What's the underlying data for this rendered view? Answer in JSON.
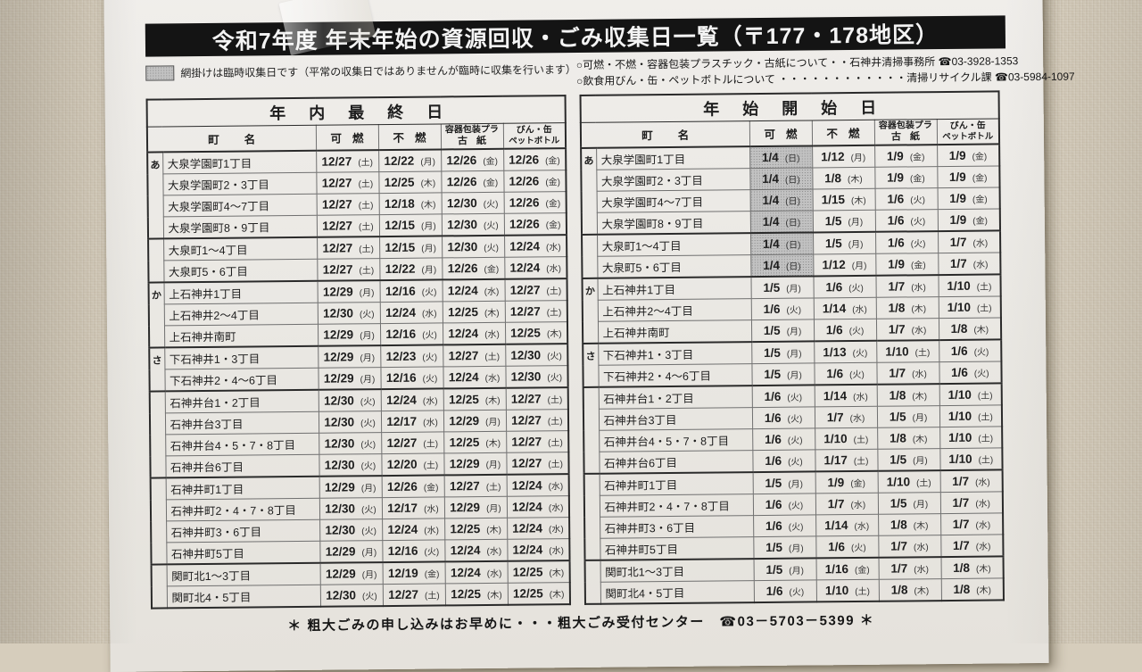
{
  "title": "令和7年度 年末年始の資源回収・ごみ収集日一覧（〒177・178地区）",
  "legend": {
    "text": "網掛けは臨時収集日です（平常の収集日ではありませんが臨時に収集を行います）"
  },
  "contacts": {
    "line1": "○可燃・不燃・容器包装プラスチック・古紙について・・石神井清掃事務所 ☎03-3928-1353",
    "line2": "○飲食用びん・缶・ペットボトルについて ・・・・・・・・・・・・清掃リサイクル課 ☎03-5984-1097"
  },
  "columns": {
    "town": "町名",
    "burnable": "可燃",
    "nonburnable": "不燃",
    "plastic1": "容器包装プラ",
    "plastic2": "古紙",
    "bottle1": "びん・缶",
    "bottle2": "ペットボトル"
  },
  "segments": [
    {
      "label": "あ",
      "rows": 4
    },
    {
      "label": "",
      "rows": 2
    },
    {
      "label": "か",
      "rows": 3
    },
    {
      "label": "さ",
      "rows": 2
    },
    {
      "label": "",
      "rows": 4
    },
    {
      "label": "",
      "rows": 4
    },
    {
      "label": "",
      "rows": 2
    }
  ],
  "tables": [
    {
      "title": "年内最終日",
      "rows": [
        [
          "大泉学園町1丁目",
          "12/27",
          "土",
          "12/22",
          "月",
          "12/26",
          "金",
          "12/26",
          "金",
          0
        ],
        [
          "大泉学園町2・3丁目",
          "12/27",
          "土",
          "12/25",
          "木",
          "12/26",
          "金",
          "12/26",
          "金",
          0
        ],
        [
          "大泉学園町4～7丁目",
          "12/27",
          "土",
          "12/18",
          "木",
          "12/30",
          "火",
          "12/26",
          "金",
          0
        ],
        [
          "大泉学園町8・9丁目",
          "12/27",
          "土",
          "12/15",
          "月",
          "12/30",
          "火",
          "12/26",
          "金",
          0
        ],
        [
          "大泉町1～4丁目",
          "12/27",
          "土",
          "12/15",
          "月",
          "12/30",
          "火",
          "12/24",
          "水",
          0
        ],
        [
          "大泉町5・6丁目",
          "12/27",
          "土",
          "12/22",
          "月",
          "12/26",
          "金",
          "12/24",
          "水",
          0
        ],
        [
          "上石神井1丁目",
          "12/29",
          "月",
          "12/16",
          "火",
          "12/24",
          "水",
          "12/27",
          "土",
          0
        ],
        [
          "上石神井2～4丁目",
          "12/30",
          "火",
          "12/24",
          "水",
          "12/25",
          "木",
          "12/27",
          "土",
          0
        ],
        [
          "上石神井南町",
          "12/29",
          "月",
          "12/16",
          "火",
          "12/24",
          "水",
          "12/25",
          "木",
          0
        ],
        [
          "下石神井1・3丁目",
          "12/29",
          "月",
          "12/23",
          "火",
          "12/27",
          "土",
          "12/30",
          "火",
          0
        ],
        [
          "下石神井2・4～6丁目",
          "12/29",
          "月",
          "12/16",
          "火",
          "12/24",
          "水",
          "12/30",
          "火",
          0
        ],
        [
          "石神井台1・2丁目",
          "12/30",
          "火",
          "12/24",
          "水",
          "12/25",
          "木",
          "12/27",
          "土",
          0
        ],
        [
          "石神井台3丁目",
          "12/30",
          "火",
          "12/17",
          "水",
          "12/29",
          "月",
          "12/27",
          "土",
          0
        ],
        [
          "石神井台4・5・7・8丁目",
          "12/30",
          "火",
          "12/27",
          "土",
          "12/25",
          "木",
          "12/27",
          "土",
          0
        ],
        [
          "石神井台6丁目",
          "12/30",
          "火",
          "12/20",
          "土",
          "12/29",
          "月",
          "12/27",
          "土",
          0
        ],
        [
          "石神井町1丁目",
          "12/29",
          "月",
          "12/26",
          "金",
          "12/27",
          "土",
          "12/24",
          "水",
          0
        ],
        [
          "石神井町2・4・7・8丁目",
          "12/30",
          "火",
          "12/17",
          "水",
          "12/29",
          "月",
          "12/24",
          "水",
          0
        ],
        [
          "石神井町3・6丁目",
          "12/30",
          "火",
          "12/24",
          "水",
          "12/25",
          "木",
          "12/24",
          "水",
          0
        ],
        [
          "石神井町5丁目",
          "12/29",
          "月",
          "12/16",
          "火",
          "12/24",
          "水",
          "12/24",
          "水",
          0
        ],
        [
          "関町北1～3丁目",
          "12/29",
          "月",
          "12/19",
          "金",
          "12/24",
          "水",
          "12/25",
          "木",
          0
        ],
        [
          "関町北4・5丁目",
          "12/30",
          "火",
          "12/27",
          "土",
          "12/25",
          "木",
          "12/25",
          "木",
          0
        ]
      ]
    },
    {
      "title": "年始開始日",
      "rows": [
        [
          "大泉学園町1丁目",
          "1/4",
          "日",
          "1/12",
          "月",
          "1/9",
          "金",
          "1/9",
          "金",
          1
        ],
        [
          "大泉学園町2・3丁目",
          "1/4",
          "日",
          "1/8",
          "木",
          "1/9",
          "金",
          "1/9",
          "金",
          1
        ],
        [
          "大泉学園町4～7丁目",
          "1/4",
          "日",
          "1/15",
          "木",
          "1/6",
          "火",
          "1/9",
          "金",
          1
        ],
        [
          "大泉学園町8・9丁目",
          "1/4",
          "日",
          "1/5",
          "月",
          "1/6",
          "火",
          "1/9",
          "金",
          1
        ],
        [
          "大泉町1～4丁目",
          "1/4",
          "日",
          "1/5",
          "月",
          "1/6",
          "火",
          "1/7",
          "水",
          1
        ],
        [
          "大泉町5・6丁目",
          "1/4",
          "日",
          "1/12",
          "月",
          "1/9",
          "金",
          "1/7",
          "水",
          1
        ],
        [
          "上石神井1丁目",
          "1/5",
          "月",
          "1/6",
          "火",
          "1/7",
          "水",
          "1/10",
          "土",
          0
        ],
        [
          "上石神井2～4丁目",
          "1/6",
          "火",
          "1/14",
          "水",
          "1/8",
          "木",
          "1/10",
          "土",
          0
        ],
        [
          "上石神井南町",
          "1/5",
          "月",
          "1/6",
          "火",
          "1/7",
          "水",
          "1/8",
          "木",
          0
        ],
        [
          "下石神井1・3丁目",
          "1/5",
          "月",
          "1/13",
          "火",
          "1/10",
          "土",
          "1/6",
          "火",
          0
        ],
        [
          "下石神井2・4～6丁目",
          "1/5",
          "月",
          "1/6",
          "火",
          "1/7",
          "水",
          "1/6",
          "火",
          0
        ],
        [
          "石神井台1・2丁目",
          "1/6",
          "火",
          "1/14",
          "水",
          "1/8",
          "木",
          "1/10",
          "土",
          0
        ],
        [
          "石神井台3丁目",
          "1/6",
          "火",
          "1/7",
          "水",
          "1/5",
          "月",
          "1/10",
          "土",
          0
        ],
        [
          "石神井台4・5・7・8丁目",
          "1/6",
          "火",
          "1/10",
          "土",
          "1/8",
          "木",
          "1/10",
          "土",
          0
        ],
        [
          "石神井台6丁目",
          "1/6",
          "火",
          "1/17",
          "土",
          "1/5",
          "月",
          "1/10",
          "土",
          0
        ],
        [
          "石神井町1丁目",
          "1/5",
          "月",
          "1/9",
          "金",
          "1/10",
          "土",
          "1/7",
          "水",
          0
        ],
        [
          "石神井町2・4・7・8丁目",
          "1/6",
          "火",
          "1/7",
          "水",
          "1/5",
          "月",
          "1/7",
          "水",
          0
        ],
        [
          "石神井町3・6丁目",
          "1/6",
          "火",
          "1/14",
          "水",
          "1/8",
          "木",
          "1/7",
          "水",
          0
        ],
        [
          "石神井町5丁目",
          "1/5",
          "月",
          "1/6",
          "火",
          "1/7",
          "水",
          "1/7",
          "水",
          0
        ],
        [
          "関町北1～3丁目",
          "1/5",
          "月",
          "1/16",
          "金",
          "1/7",
          "水",
          "1/8",
          "木",
          0
        ],
        [
          "関町北4・5丁目",
          "1/6",
          "火",
          "1/10",
          "土",
          "1/8",
          "木",
          "1/8",
          "木",
          0
        ]
      ]
    }
  ],
  "footer": "＊ 粗大ごみの申し込みはお早めに・・・粗大ごみ受付センター　☎03－5703－5399 ＊",
  "colors": {
    "title_bar": "#141414",
    "shade": "#c2c2c2",
    "wall": "#d6cdbc",
    "paper": "#edebe7"
  }
}
